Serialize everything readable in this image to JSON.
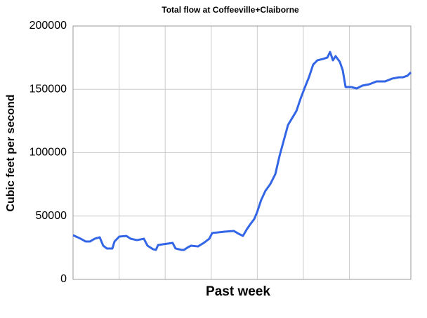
{
  "chart_data": {
    "type": "line",
    "title": "Total flow at Coffeeville+Claiborne",
    "x_label": "Past week",
    "y_label": "Cubic feet per second",
    "x": [
      0,
      4.0,
      6.6,
      8.8,
      11.3,
      13.9,
      15.7,
      17.6,
      20.5,
      21.6,
      24.1,
      27.8,
      30.0,
      33.3,
      36.9,
      38.8,
      41.7,
      43.2,
      44.3,
      46.8,
      51.9,
      53.4,
      56.4,
      57.8,
      60.0,
      61.5,
      65.1,
      68.1,
      71.0,
      72.5,
      79.0,
      83.8,
      86.3,
      88.5,
      90.7,
      92.2,
      94.4,
      95.8,
      98.0,
      100.2,
      102.8,
      105.4,
      107.6,
      109.8,
      112.0,
      114.2,
      116.4,
      118.6,
      120.7,
      122.9,
      125.1,
      127.3,
      130.3,
      132.5,
      133.9,
      135.4,
      136.8,
      139.0,
      140.5,
      142.0,
      144.9,
      147.8,
      150.7,
      154.4,
      158.1,
      162.5,
      166.1,
      169.8,
      171.9,
      174.2,
      176.0
    ],
    "series": [
      {
        "name": "Total flow",
        "color": "#3366e6",
        "values": [
          34900,
          32100,
          29900,
          29900,
          32100,
          33200,
          26600,
          24400,
          24400,
          29900,
          33800,
          34300,
          32100,
          31000,
          32100,
          26600,
          23800,
          23300,
          27100,
          27700,
          28800,
          24400,
          23300,
          23300,
          25500,
          26600,
          26000,
          28800,
          32100,
          36600,
          37700,
          38200,
          36000,
          34300,
          39900,
          43200,
          47600,
          52600,
          62600,
          69800,
          75300,
          83100,
          97500,
          109700,
          121900,
          127400,
          133000,
          142900,
          151200,
          159500,
          169500,
          172900,
          174000,
          175100,
          179500,
          172900,
          176200,
          171700,
          165100,
          151800,
          151800,
          150700,
          152900,
          154000,
          156200,
          156200,
          158400,
          159500,
          159500,
          160700,
          163400
        ]
      }
    ],
    "xlim": [
      0,
      176
    ],
    "xticks": [
      24,
      48,
      72,
      96,
      120,
      144
    ],
    "ylim": [
      0,
      200000
    ],
    "yticks": [
      0,
      50000,
      100000,
      150000,
      200000
    ],
    "grid": true
  }
}
